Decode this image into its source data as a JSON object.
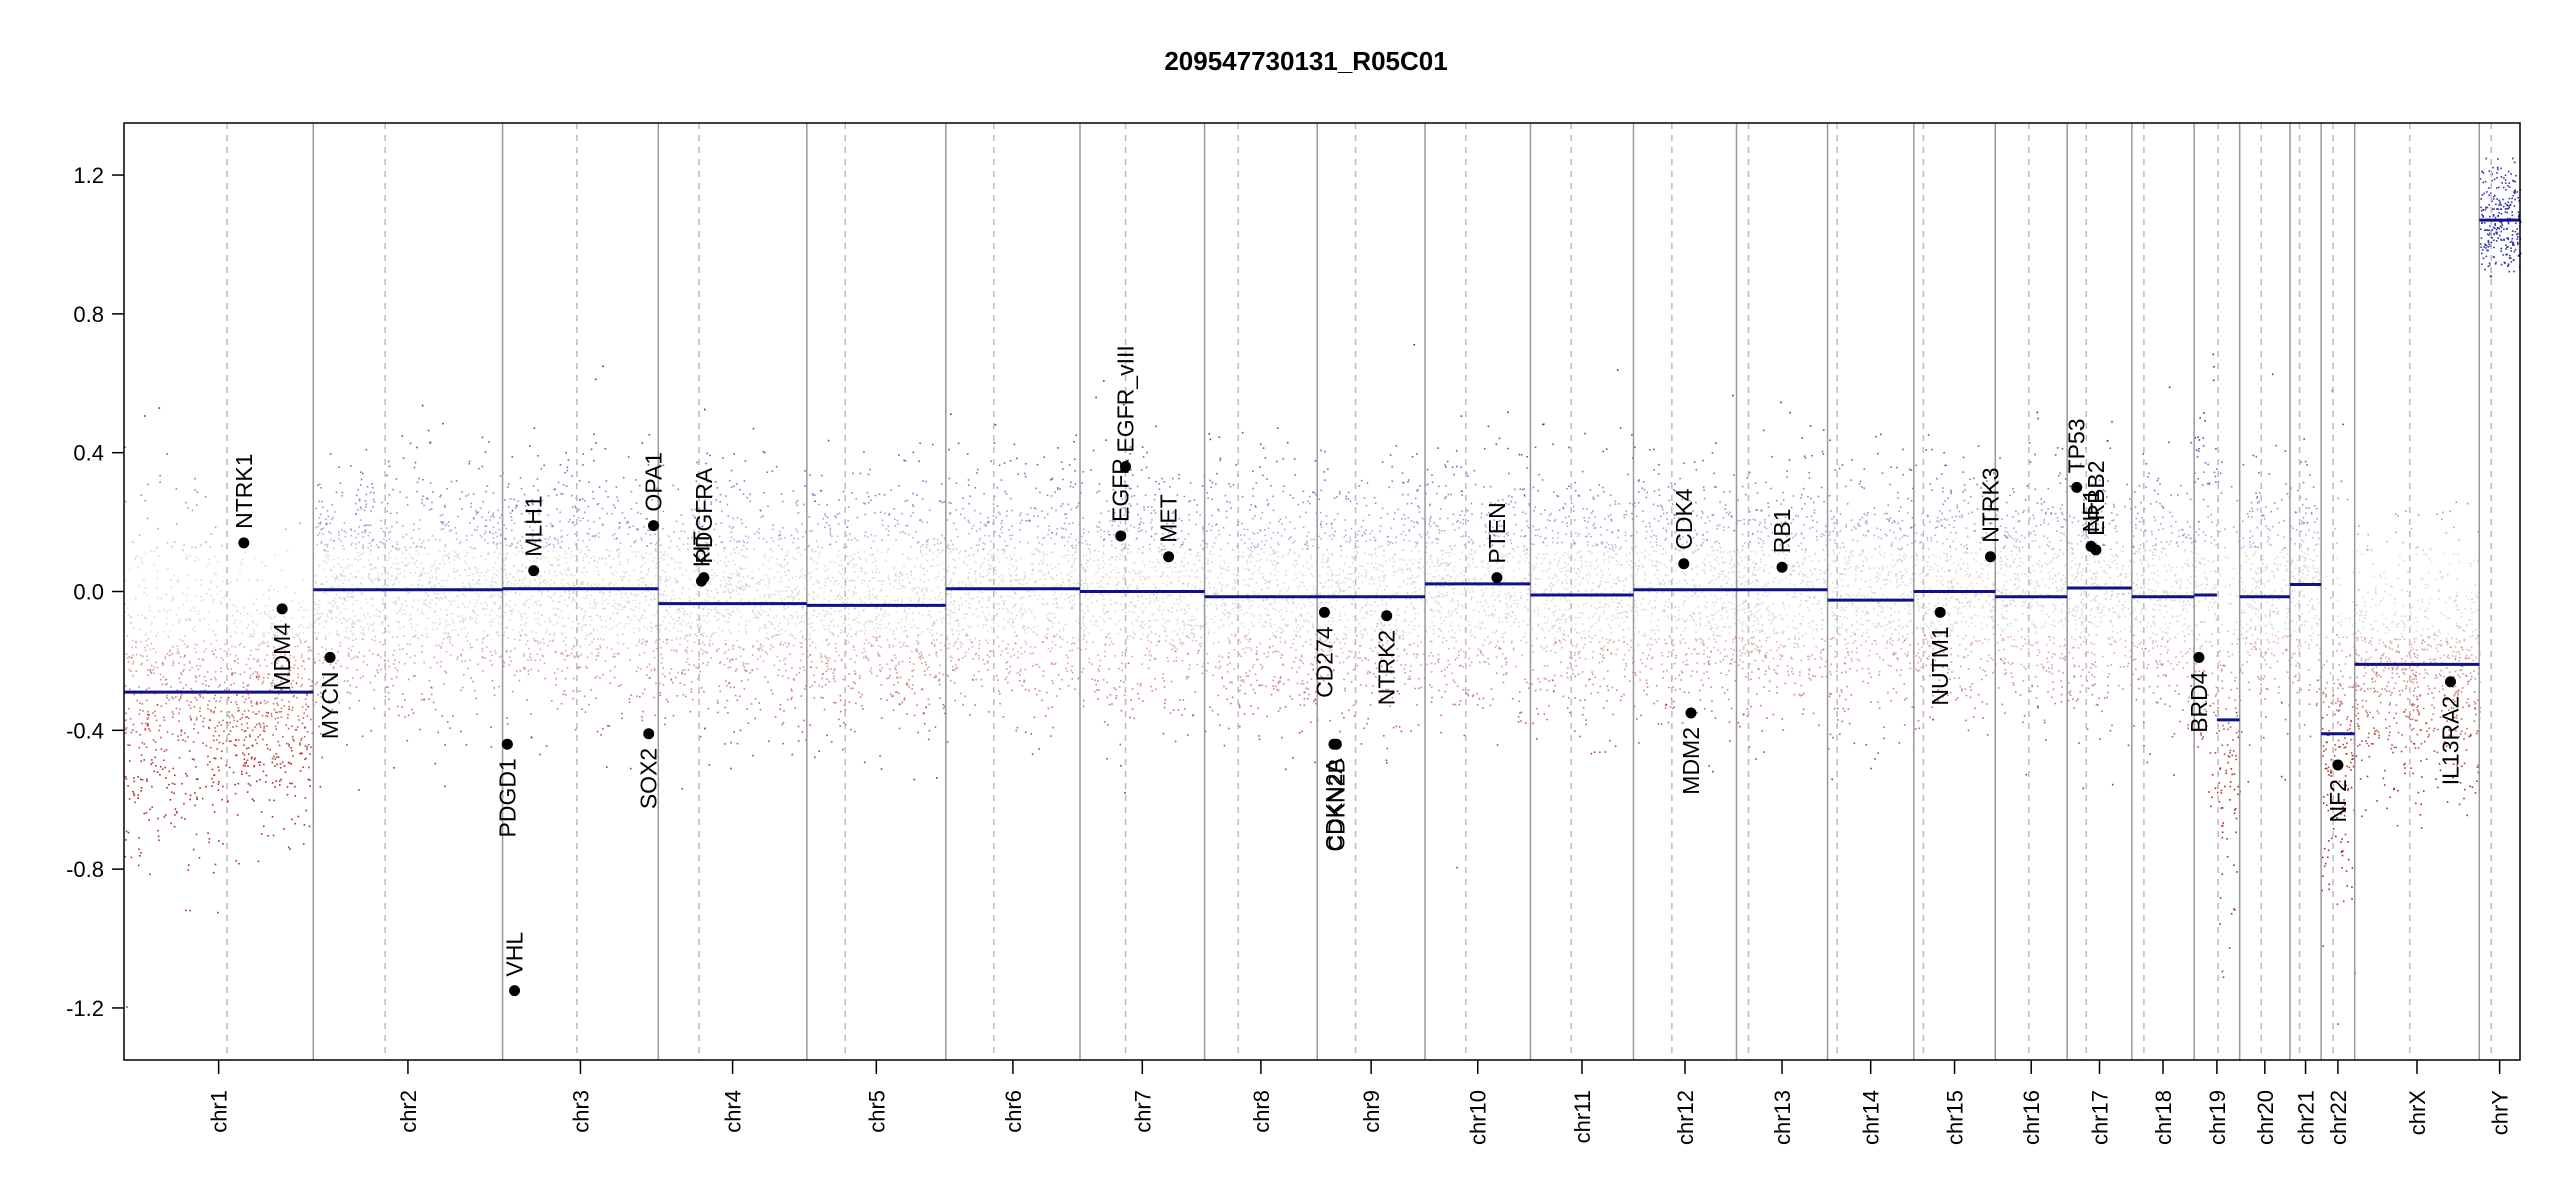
{
  "chart_data": {
    "type": "scatter",
    "title": "209547730131_R05C01",
    "xlabel": "",
    "ylabel": "",
    "ylim": [
      -1.35,
      1.35
    ],
    "yticks": [
      "1.2",
      "0.8",
      "0.4",
      "0.0",
      "-0.4",
      "-0.8",
      "-1.2"
    ],
    "ytick_values": [
      1.2,
      0.8,
      0.4,
      0.0,
      -0.4,
      -0.8,
      -1.2
    ],
    "colors": {
      "gain": "#2a2aa8",
      "loss": "#a8231c",
      "neutral": "#bdbdbd",
      "segment": "#10108a",
      "gene": "#000000"
    },
    "chromosomes": [
      {
        "name": "chr1",
        "start": 0.0,
        "end": 0.079,
        "centro": 0.043,
        "segments": [
          {
            "from": 0.0,
            "to": 1.0,
            "value": -0.29
          }
        ]
      },
      {
        "name": "chr2",
        "start": 0.079,
        "end": 0.158,
        "centro": 0.109,
        "segments": [
          {
            "from": 0.0,
            "to": 1.0,
            "value": 0.005
          }
        ]
      },
      {
        "name": "chr3",
        "start": 0.158,
        "end": 0.223,
        "centro": 0.189,
        "segments": [
          {
            "from": 0.0,
            "to": 1.0,
            "value": 0.008
          }
        ]
      },
      {
        "name": "chr4",
        "start": 0.223,
        "end": 0.285,
        "centro": 0.24,
        "segments": [
          {
            "from": 0.0,
            "to": 1.0,
            "value": -0.035
          }
        ]
      },
      {
        "name": "chr5",
        "start": 0.285,
        "end": 0.343,
        "centro": 0.301,
        "segments": [
          {
            "from": 0.0,
            "to": 1.0,
            "value": -0.04
          }
        ]
      },
      {
        "name": "chr6",
        "start": 0.343,
        "end": 0.399,
        "centro": 0.363,
        "segments": [
          {
            "from": 0.0,
            "to": 1.0,
            "value": 0.008
          }
        ]
      },
      {
        "name": "chr7",
        "start": 0.399,
        "end": 0.451,
        "centro": 0.418,
        "segments": [
          {
            "from": 0.0,
            "to": 1.0,
            "value": 0.0
          }
        ]
      },
      {
        "name": "chr8",
        "start": 0.451,
        "end": 0.498,
        "centro": 0.465,
        "segments": [
          {
            "from": 0.0,
            "to": 1.0,
            "value": -0.015
          }
        ]
      },
      {
        "name": "chr9",
        "start": 0.498,
        "end": 0.543,
        "centro": 0.514,
        "segments": [
          {
            "from": 0.0,
            "to": 1.0,
            "value": -0.015
          }
        ]
      },
      {
        "name": "chr10",
        "start": 0.543,
        "end": 0.587,
        "centro": 0.56,
        "segments": [
          {
            "from": 0.0,
            "to": 1.0,
            "value": 0.022
          }
        ]
      },
      {
        "name": "chr11",
        "start": 0.587,
        "end": 0.63,
        "centro": 0.604,
        "segments": [
          {
            "from": 0.0,
            "to": 1.0,
            "value": -0.01
          }
        ]
      },
      {
        "name": "chr12",
        "start": 0.63,
        "end": 0.673,
        "centro": 0.646,
        "segments": [
          {
            "from": 0.0,
            "to": 1.0,
            "value": 0.005
          }
        ]
      },
      {
        "name": "chr13",
        "start": 0.673,
        "end": 0.711,
        "centro": 0.678,
        "segments": [
          {
            "from": 0.0,
            "to": 1.0,
            "value": 0.005
          }
        ]
      },
      {
        "name": "chr14",
        "start": 0.711,
        "end": 0.747,
        "centro": 0.715,
        "segments": [
          {
            "from": 0.0,
            "to": 1.0,
            "value": -0.025
          }
        ]
      },
      {
        "name": "chr15",
        "start": 0.747,
        "end": 0.781,
        "centro": 0.751,
        "segments": [
          {
            "from": 0.0,
            "to": 1.0,
            "value": 0.0
          }
        ]
      },
      {
        "name": "chr16",
        "start": 0.781,
        "end": 0.811,
        "centro": 0.795,
        "segments": [
          {
            "from": 0.0,
            "to": 1.0,
            "value": -0.015
          }
        ]
      },
      {
        "name": "chr17",
        "start": 0.811,
        "end": 0.838,
        "centro": 0.819,
        "segments": [
          {
            "from": 0.0,
            "to": 1.0,
            "value": 0.01
          }
        ]
      },
      {
        "name": "chr18",
        "start": 0.838,
        "end": 0.864,
        "centro": 0.843,
        "segments": [
          {
            "from": 0.0,
            "to": 1.0,
            "value": -0.015
          }
        ]
      },
      {
        "name": "chr19",
        "start": 0.864,
        "end": 0.883,
        "centro": 0.874,
        "segments": [
          {
            "from": 0.0,
            "to": 0.5,
            "value": -0.01
          },
          {
            "from": 0.5,
            "to": 1.0,
            "value": -0.37
          }
        ]
      },
      {
        "name": "chr20",
        "start": 0.883,
        "end": 0.904,
        "centro": 0.892,
        "segments": [
          {
            "from": 0.0,
            "to": 1.0,
            "value": -0.015
          }
        ]
      },
      {
        "name": "chr21",
        "start": 0.904,
        "end": 0.917,
        "centro": 0.908,
        "segments": [
          {
            "from": 0.0,
            "to": 1.0,
            "value": 0.02
          }
        ]
      },
      {
        "name": "chr22",
        "start": 0.917,
        "end": 0.931,
        "centro": 0.922,
        "segments": [
          {
            "from": 0.0,
            "to": 1.0,
            "value": -0.41
          }
        ]
      },
      {
        "name": "chrX",
        "start": 0.931,
        "end": 0.983,
        "centro": 0.954,
        "segments": [
          {
            "from": 0.0,
            "to": 1.0,
            "value": -0.21
          }
        ]
      },
      {
        "name": "chrY",
        "start": 0.983,
        "end": 1.0,
        "centro": 0.988,
        "segments": [
          {
            "from": 0.0,
            "to": 1.0,
            "value": 1.07
          }
        ]
      }
    ],
    "genes": [
      {
        "name": "NTRK1",
        "pos": 0.05,
        "value": 0.14,
        "label": "above"
      },
      {
        "name": "MDM4",
        "pos": 0.066,
        "value": -0.05,
        "label": "below"
      },
      {
        "name": "MYCN",
        "pos": 0.086,
        "value": -0.19,
        "label": "below"
      },
      {
        "name": "PDGD1",
        "pos": 0.16,
        "value": -0.44,
        "label": "below"
      },
      {
        "name": "VHL",
        "pos": 0.163,
        "value": -1.15,
        "label": "above"
      },
      {
        "name": "MLH1",
        "pos": 0.171,
        "value": 0.06,
        "label": "above"
      },
      {
        "name": "SOX2",
        "pos": 0.219,
        "value": -0.41,
        "label": "below"
      },
      {
        "name": "OPA1",
        "pos": 0.221,
        "value": 0.19,
        "label": "above"
      },
      {
        "name": "KIT",
        "pos": 0.241,
        "value": 0.03,
        "label": "above"
      },
      {
        "name": "PDGFRA",
        "pos": 0.242,
        "value": 0.04,
        "label": "above"
      },
      {
        "name": "EGFR",
        "pos": 0.416,
        "value": 0.16,
        "label": "above"
      },
      {
        "name": "EGFR_vIII",
        "pos": 0.418,
        "value": 0.36,
        "label": "above"
      },
      {
        "name": "MET",
        "pos": 0.436,
        "value": 0.1,
        "label": "above"
      },
      {
        "name": "CD274",
        "pos": 0.501,
        "value": -0.06,
        "label": "below"
      },
      {
        "name": "CDKN2A",
        "pos": 0.505,
        "value": -0.44,
        "label": "below"
      },
      {
        "name": "CDKN2B",
        "pos": 0.506,
        "value": -0.44,
        "label": "below"
      },
      {
        "name": "NTRK2",
        "pos": 0.527,
        "value": -0.07,
        "label": "below"
      },
      {
        "name": "PTEN",
        "pos": 0.573,
        "value": 0.04,
        "label": "above"
      },
      {
        "name": "CDK4",
        "pos": 0.651,
        "value": 0.08,
        "label": "above"
      },
      {
        "name": "MDM2",
        "pos": 0.654,
        "value": -0.35,
        "label": "below"
      },
      {
        "name": "RB1",
        "pos": 0.692,
        "value": 0.07,
        "label": "above"
      },
      {
        "name": "NUTM1",
        "pos": 0.758,
        "value": -0.06,
        "label": "below"
      },
      {
        "name": "NTRK3",
        "pos": 0.779,
        "value": 0.1,
        "label": "above"
      },
      {
        "name": "TP53",
        "pos": 0.815,
        "value": 0.3,
        "label": "above"
      },
      {
        "name": "NF1",
        "pos": 0.821,
        "value": 0.13,
        "label": "above"
      },
      {
        "name": "ERBB2",
        "pos": 0.823,
        "value": 0.12,
        "label": "above"
      },
      {
        "name": "BRD4",
        "pos": 0.866,
        "value": -0.19,
        "label": "below"
      },
      {
        "name": "NF2",
        "pos": 0.924,
        "value": -0.5,
        "label": "below"
      },
      {
        "name": "IL13RA2",
        "pos": 0.971,
        "value": -0.26,
        "label": "below"
      }
    ]
  }
}
